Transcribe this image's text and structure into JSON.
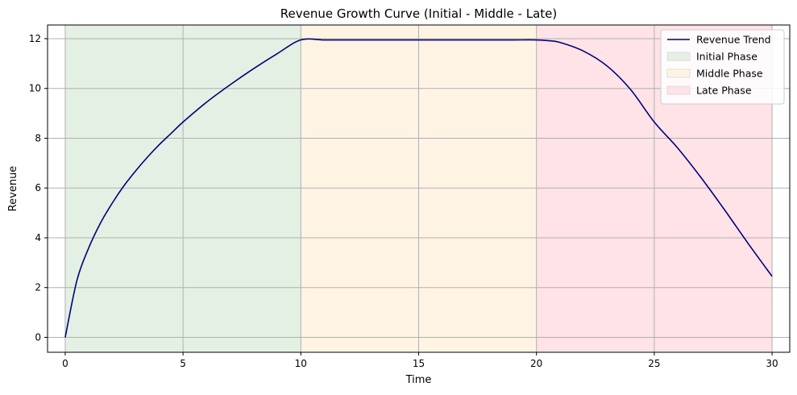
{
  "chart_data": {
    "type": "line",
    "title": "Revenue Growth Curve (Initial - Middle - Late)",
    "xlabel": "Time",
    "ylabel": "Revenue",
    "xlim": [
      -0.75,
      30.75
    ],
    "ylim": [
      -0.6,
      12.55
    ],
    "xticks": [
      0,
      5,
      10,
      15,
      20,
      25,
      30
    ],
    "yticks": [
      0,
      2,
      4,
      6,
      8,
      10,
      12
    ],
    "grid": true,
    "legend_position": "top-right",
    "phases": [
      {
        "name": "Initial Phase",
        "x_start": 0,
        "x_end": 10,
        "color": "#e4f0e4"
      },
      {
        "name": "Middle Phase",
        "x_start": 10,
        "x_end": 20,
        "color": "#fff4e4"
      },
      {
        "name": "Late Phase",
        "x_start": 20,
        "x_end": 30,
        "color": "#ffe3e6"
      }
    ],
    "series": [
      {
        "name": "Revenue Trend",
        "color": "#000080",
        "x": [
          0,
          0.5,
          1,
          1.5,
          2,
          2.5,
          3,
          3.5,
          4,
          4.5,
          5,
          6,
          7,
          8,
          9,
          10,
          11,
          12,
          13,
          14,
          15,
          16,
          17,
          18,
          19,
          20,
          20.5,
          21,
          22,
          23,
          24,
          25,
          26,
          27,
          28,
          29,
          30
        ],
        "y": [
          0,
          2.3,
          3.6,
          4.6,
          5.4,
          6.1,
          6.7,
          7.25,
          7.75,
          8.2,
          8.65,
          9.45,
          10.15,
          10.8,
          11.4,
          11.95,
          11.95,
          11.95,
          11.95,
          11.95,
          11.95,
          11.95,
          11.95,
          11.95,
          11.95,
          11.95,
          11.92,
          11.85,
          11.5,
          10.9,
          9.95,
          8.65,
          7.6,
          6.4,
          5.1,
          3.75,
          2.45
        ]
      }
    ]
  }
}
